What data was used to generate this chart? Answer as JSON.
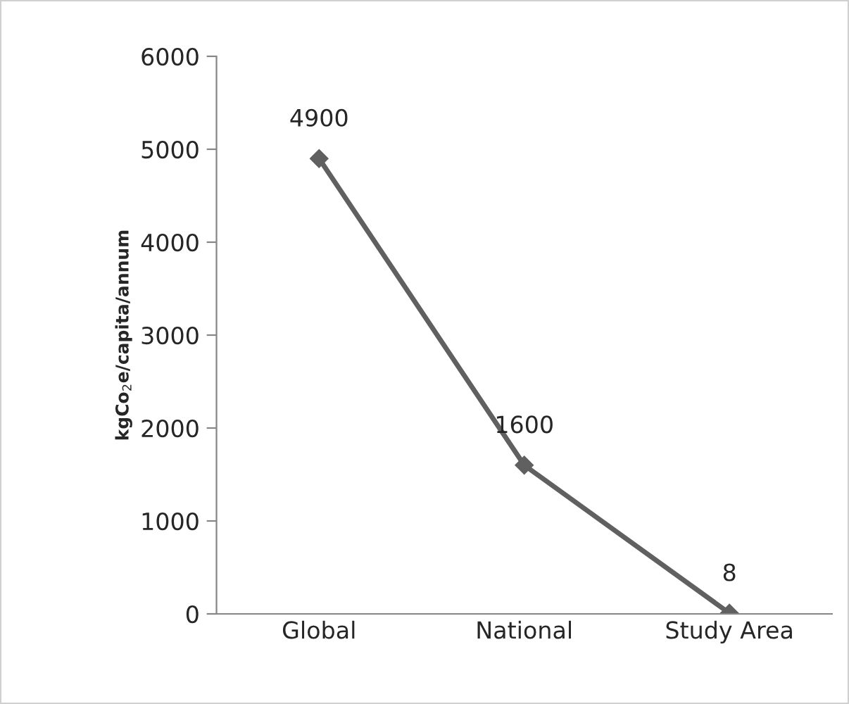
{
  "chart_data": {
    "type": "line",
    "ylabel": "kgCo$_{2}$e/capita/annum",
    "categories": [
      "Global",
      "National",
      "Study Area"
    ],
    "series": [
      {
        "color": "#606060",
        "values": [
          4900,
          1600,
          8
        ]
      }
    ],
    "ylim": [
      0,
      6000
    ],
    "yticks": [
      0,
      1000,
      2000,
      3000,
      4000,
      5000,
      6000
    ],
    "data_labels": true,
    "marker": "diamond",
    "line_style": "solid",
    "grid": false,
    "legend": false
  }
}
